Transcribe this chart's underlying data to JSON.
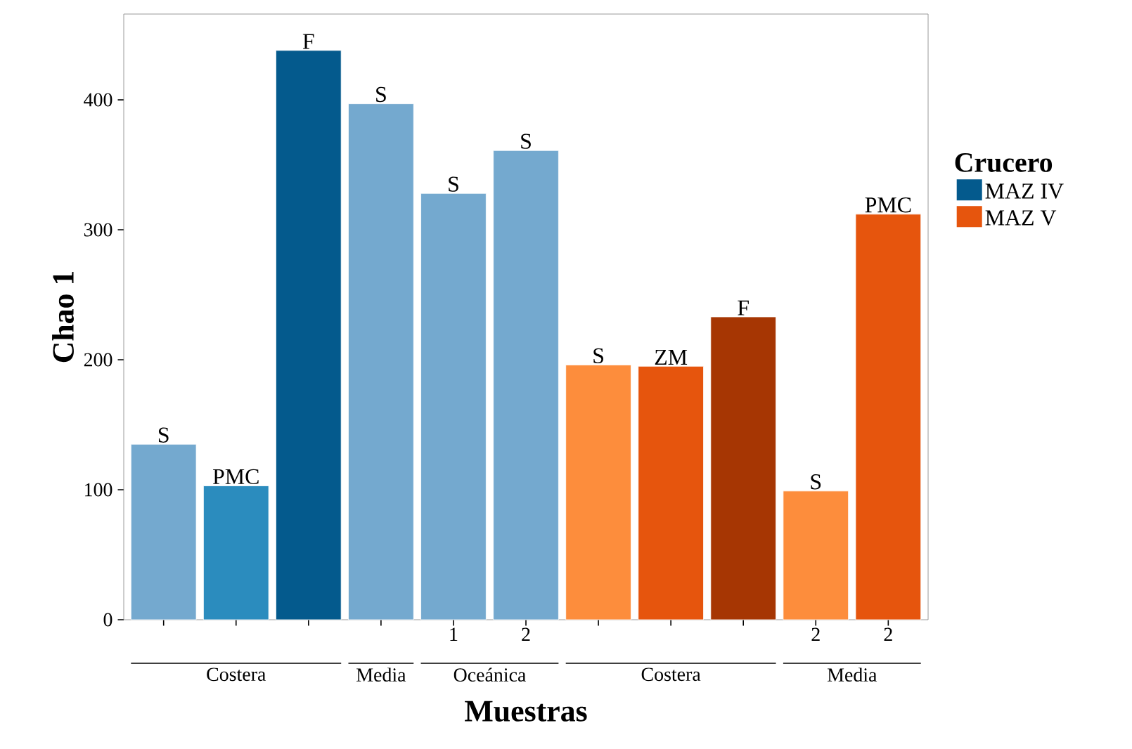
{
  "chart_data": {
    "type": "bar",
    "xlabel": "Muestras",
    "ylabel": "Chao 1",
    "legend_title": "Crucero",
    "categories": [
      null,
      null,
      null,
      null,
      "1",
      "2",
      null,
      null,
      null,
      "2",
      "2"
    ],
    "series": [
      {
        "name": "MAZ IV",
        "color": "#045a8d",
        "values": [
          135,
          103,
          438,
          397,
          328,
          361,
          null,
          null,
          null,
          null,
          null
        ],
        "colors": [
          "#74a9cf",
          "#2b8cbe",
          "#045a8d",
          "#74a9cf",
          "#74a9cf",
          "#74a9cf",
          null,
          null,
          null,
          null,
          null
        ],
        "value_labels": [
          "S",
          "PMC",
          "F",
          "S",
          "S",
          "S",
          null,
          null,
          null,
          null,
          null
        ]
      },
      {
        "name": "MAZ V",
        "color": "#e6550d",
        "values": [
          null,
          null,
          null,
          null,
          null,
          null,
          196,
          195,
          233,
          99,
          312
        ],
        "colors": [
          null,
          null,
          null,
          null,
          null,
          null,
          "#fd8d3c",
          "#e6550d",
          "#a63603",
          "#fd8d3c",
          "#e6550d"
        ],
        "value_labels": [
          null,
          null,
          null,
          null,
          null,
          null,
          "S",
          "ZM",
          "F",
          "S",
          "PMC"
        ]
      }
    ],
    "annotations": [
      "Costera",
      "Media",
      "Oceánica",
      "Costera",
      "Media"
    ],
    "ylim": [
      0,
      466
    ],
    "yticks": [
      0,
      100,
      200,
      300,
      400
    ],
    "grid": false,
    "legend": "right"
  }
}
